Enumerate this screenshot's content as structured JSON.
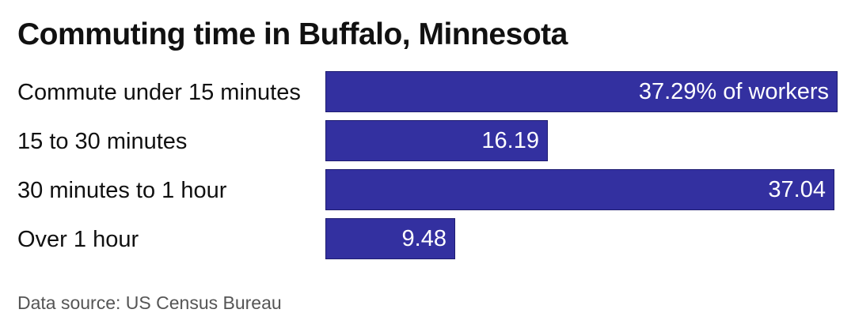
{
  "title": "Commuting time in Buffalo, Minnesota",
  "source": "Data source: US Census Bureau",
  "colors": {
    "bar": "#3330a0",
    "bar_text": "#ffffff",
    "text": "#111111",
    "source_text": "#555555"
  },
  "chart_data": {
    "type": "bar",
    "orientation": "horizontal",
    "title": "Commuting time in Buffalo, Minnesota",
    "categories": [
      "Commute under 15 minutes",
      "15 to 30 minutes",
      "30 minutes to 1 hour",
      "Over 1 hour"
    ],
    "values": [
      37.29,
      16.19,
      37.04,
      9.48
    ],
    "value_labels": [
      "37.29% of workers",
      "16.19",
      "37.04",
      "9.48"
    ],
    "unit": "% of workers",
    "xlim": [
      0,
      37.29
    ],
    "grid": false,
    "legend": "none"
  }
}
